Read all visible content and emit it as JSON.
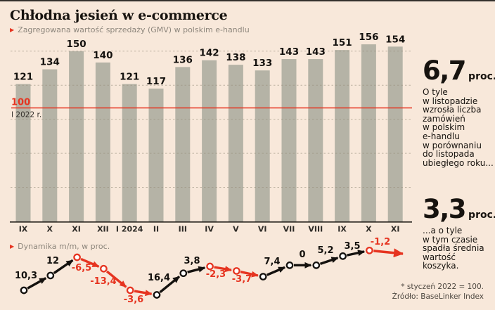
{
  "header": {
    "title": "Chłodna jesień w e-commerce"
  },
  "colors": {
    "background": "#f8e8da",
    "topline": "#33302c",
    "bar": "#b5b3a6",
    "red": "#e63420",
    "black": "#14110e",
    "grid": "#99907e",
    "axis": "#221e19",
    "gray_text": "#8d867c",
    "dark_text": "#17130f",
    "footnote_text": "#4c463f"
  },
  "chart_data": [
    {
      "type": "bar",
      "title": "Zagregowana wartość sprzedaży (GMV) w polskim e-handlu",
      "categories": [
        "IX",
        "X",
        "XI",
        "XII",
        "I 2024",
        "II",
        "III",
        "IV",
        "V",
        "VI",
        "VII",
        "VIII",
        "IX",
        "X",
        "XI"
      ],
      "values": [
        121,
        134,
        150,
        140,
        121,
        117,
        136,
        142,
        138,
        133,
        143,
        143,
        151,
        156,
        154
      ],
      "baseline": {
        "value": 100,
        "label": "100",
        "sublabel": "I 2022 r."
      },
      "ylim": [
        0,
        160
      ],
      "gridlines": [
        30,
        60,
        90,
        120,
        150
      ],
      "grid": "dashed horizontal"
    },
    {
      "type": "line",
      "title": "Dynamika m/m, w proc.",
      "months_from_to": [
        "IX→X",
        "X→XI",
        "XI→XII",
        "XII→I 2024",
        "I 2024→II",
        "II→III",
        "III→IV",
        "IV→V",
        "V→VI",
        "VI→VII",
        "VII→VIII",
        "VIII→IX",
        "IX→X",
        "X→XI"
      ],
      "values": [
        10.3,
        12,
        -6.5,
        -13.4,
        -3.6,
        16.4,
        3.8,
        -2.3,
        -3.7,
        7.4,
        0,
        5.2,
        3.5,
        -1.2
      ],
      "labels": [
        "10,3",
        "12",
        "-6,5",
        "-13,4",
        "-3,6",
        "16,4",
        "3,8",
        "-2,3",
        "-3,7",
        "7,4",
        "0",
        "5,2",
        "3,5",
        "-1,2"
      ],
      "legend_position": "top-left",
      "path_index_values": [
        121,
        134,
        150,
        140,
        121,
        117,
        136,
        142,
        138,
        133,
        143,
        143,
        151,
        156
      ],
      "label_positions": [
        [
          37,
          396
        ],
        [
          75,
          375
        ],
        [
          116,
          385
        ],
        [
          147,
          404
        ],
        [
          190,
          430
        ],
        [
          226,
          399
        ],
        [
          273,
          375
        ],
        [
          307,
          394
        ],
        [
          344,
          401
        ],
        [
          387,
          376
        ],
        [
          430,
          366
        ],
        [
          463,
          360
        ],
        [
          501,
          354
        ],
        [
          541,
          348
        ]
      ]
    }
  ],
  "aside": {
    "stat1": {
      "value": "6,7",
      "unit": "proc.",
      "text": "O tyle\nw listopadzie\nwzrosła liczba\nzamówień\nw polskim\ne-handlu\nw porównaniu\ndo listopada\nubiegłego roku..."
    },
    "stat2": {
      "value": "3,3",
      "unit": "proc.",
      "text": "...a o tyle\nw tym czasie\nspadła średnia\nwartość koszyka."
    }
  },
  "footnote": {
    "line1": "* styczeń 2022 = 100.",
    "line2": "Źródło: BaseLinker Index"
  }
}
